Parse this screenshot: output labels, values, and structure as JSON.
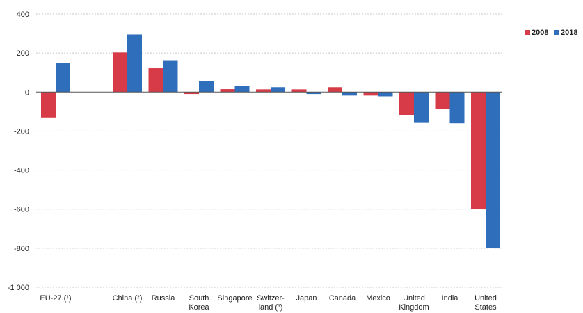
{
  "chart_data": {
    "type": "bar",
    "title": "",
    "xlabel": "",
    "ylabel": "",
    "ylim": [
      -1000,
      400
    ],
    "yticks": [
      400,
      200,
      0,
      -200,
      -400,
      -600,
      -800,
      -1000
    ],
    "ytick_labels": [
      "400",
      "200",
      "0",
      "-200",
      "-400",
      "-600",
      "-800",
      "-1 000"
    ],
    "grid": true,
    "legend_position": "top-right",
    "categories": [
      [
        "EU-27 (¹)"
      ],
      [],
      [
        "China (²)"
      ],
      [
        "Russia"
      ],
      [
        "South",
        "Korea"
      ],
      [
        "Singapore"
      ],
      [
        "Switzer-",
        "land (³)"
      ],
      [
        "Japan"
      ],
      [
        "Canada"
      ],
      [
        "Mexico"
      ],
      [
        "United",
        "Kingdom"
      ],
      [
        "India"
      ],
      [
        "United",
        "States"
      ]
    ],
    "series": [
      {
        "name": "2008",
        "color": "#d63b47",
        "values": [
          -130,
          null,
          203,
          122,
          -10,
          15,
          14,
          14,
          25,
          -18,
          -118,
          -88,
          -600
        ]
      },
      {
        "name": "2018",
        "color": "#2f6eba",
        "values": [
          150,
          null,
          295,
          163,
          58,
          33,
          25,
          -10,
          -18,
          -22,
          -158,
          -160,
          -800
        ]
      }
    ]
  }
}
